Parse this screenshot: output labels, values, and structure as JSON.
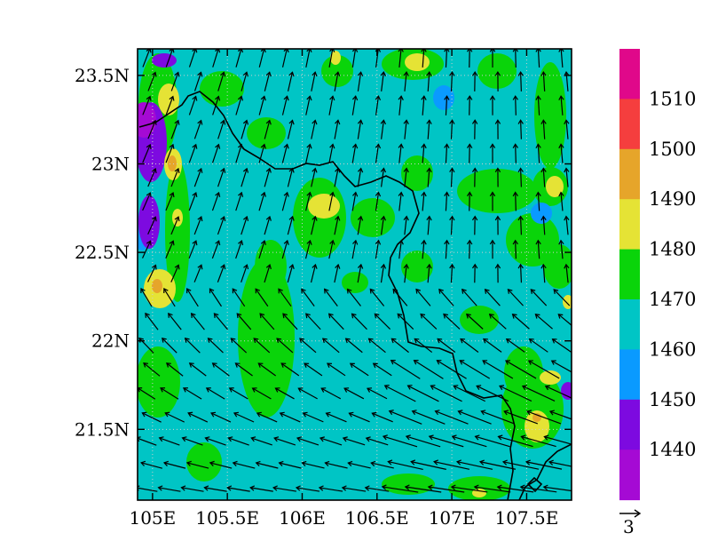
{
  "map": {
    "x_ticks": [
      "105E",
      "105.5E",
      "106E",
      "106.5E",
      "107E",
      "107.5E"
    ],
    "x_tick_values": [
      105,
      105.5,
      106,
      106.5,
      107,
      107.5
    ],
    "y_ticks": [
      "23.5N",
      "23N",
      "22.5N",
      "22N",
      "21.5N"
    ],
    "y_tick_values": [
      23.5,
      23,
      22.5,
      22,
      21.5
    ],
    "lon_range": [
      104.9,
      107.8
    ],
    "lat_range": [
      21.1,
      23.65
    ],
    "grid": "dotted"
  },
  "colorbar": {
    "labels": [
      "1510",
      "1500",
      "1490",
      "1480",
      "1470",
      "1460",
      "1450",
      "1440"
    ],
    "colors": [
      "#e0088a",
      "#f53e3e",
      "#e6a52a",
      "#e5e335",
      "#0ad40a",
      "#00c5c5",
      "#0a9aff",
      "#7d0ae0",
      "#a50ad4"
    ]
  },
  "vector_reference": {
    "label": "3"
  },
  "fill_colors": {
    "base": "#00c5c5",
    "green": "#0ad40a",
    "yellow": "#e5e335",
    "orange": "#e6a52a",
    "blue": "#0a9aff",
    "purple": "#7d0ae0",
    "violet": "#a50ad4"
  }
}
